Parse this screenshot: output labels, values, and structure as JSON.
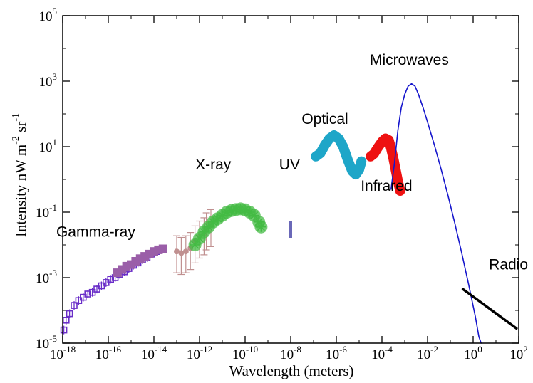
{
  "chart_data": {
    "type": "scatter",
    "title": "",
    "xlabel": "Wavelength (meters)",
    "ylabel_parts": [
      "Intensity nW m",
      "-2",
      " sr",
      "-1"
    ],
    "x_log": true,
    "y_log": true,
    "xlim_exp": [
      -18,
      2
    ],
    "ylim_exp": [
      -5,
      5
    ],
    "x_ticks": [
      {
        "exp": -18,
        "base": "10",
        "sup": "-18"
      },
      {
        "exp": -16,
        "base": "10",
        "sup": "-16"
      },
      {
        "exp": -14,
        "base": "10",
        "sup": "-14"
      },
      {
        "exp": -12,
        "base": "10",
        "sup": "-12"
      },
      {
        "exp": -10,
        "base": "10",
        "sup": "-10"
      },
      {
        "exp": -8,
        "base": "10",
        "sup": "-8"
      },
      {
        "exp": -6,
        "base": "10",
        "sup": "-6"
      },
      {
        "exp": -4,
        "base": "10",
        "sup": "-4"
      },
      {
        "exp": -2,
        "base": "10",
        "sup": "-2"
      },
      {
        "exp": 0,
        "base": "10",
        "sup": "0"
      },
      {
        "exp": 2,
        "base": "10",
        "sup": "2"
      }
    ],
    "y_ticks": [
      {
        "exp": -5,
        "base": "10",
        "sup": "-5"
      },
      {
        "exp": -3,
        "base": "10",
        "sup": "-3"
      },
      {
        "exp": -1,
        "base": "10",
        "sup": "-1"
      },
      {
        "exp": 1,
        "base": "10",
        "sup": "1"
      },
      {
        "exp": 3,
        "base": "10",
        "sup": "3"
      },
      {
        "exp": 5,
        "base": "10",
        "sup": "5"
      }
    ],
    "grid": false,
    "legend": "none",
    "series": [
      {
        "id": "gamma-purple",
        "color": "#6a2ec8",
        "marker": "open-square-errorbar",
        "points": [
          [
            -17.95,
            -4.6
          ],
          [
            -17.85,
            -4.3
          ],
          [
            -17.7,
            -4.1
          ],
          [
            -17.5,
            -3.85
          ],
          [
            -17.3,
            -3.7
          ],
          [
            -17.1,
            -3.6
          ],
          [
            -16.9,
            -3.5
          ],
          [
            -16.7,
            -3.45
          ],
          [
            -16.5,
            -3.35
          ],
          [
            -16.3,
            -3.25
          ],
          [
            -16.1,
            -3.15
          ],
          [
            -15.9,
            -3.05
          ],
          [
            -15.7,
            -3.0
          ],
          [
            -15.5,
            -2.9
          ],
          [
            -15.3,
            -2.82
          ],
          [
            -15.1,
            -2.72
          ],
          [
            -14.9,
            -2.62
          ],
          [
            -14.7,
            -2.55
          ],
          [
            -14.5,
            -2.45
          ],
          [
            -14.3,
            -2.38
          ],
          [
            -14.1,
            -2.28
          ],
          [
            -13.9,
            -2.2
          ]
        ]
      },
      {
        "id": "gamma-mauve",
        "color": "#9a5ea8",
        "marker": "filled-square",
        "points": [
          [
            -15.6,
            -2.85
          ],
          [
            -15.4,
            -2.75
          ],
          [
            -15.2,
            -2.65
          ],
          [
            -15.0,
            -2.6
          ],
          [
            -14.8,
            -2.5
          ],
          [
            -14.6,
            -2.42
          ],
          [
            -14.4,
            -2.35
          ],
          [
            -14.2,
            -2.28
          ],
          [
            -14.0,
            -2.2
          ],
          [
            -13.8,
            -2.15
          ],
          [
            -13.6,
            -2.12
          ]
        ]
      },
      {
        "id": "gamma-xray-pink",
        "color": "#c09090",
        "marker": "filled-circle-errorbar",
        "points": [
          [
            -13.0,
            -2.2
          ],
          [
            -12.8,
            -2.25
          ],
          [
            -12.6,
            -2.2
          ],
          [
            -12.4,
            -2.1
          ],
          [
            -12.2,
            -1.9
          ],
          [
            -12.0,
            -1.75
          ],
          [
            -11.8,
            -1.65
          ],
          [
            -11.7,
            -1.5
          ],
          [
            -11.5,
            -1.4
          ]
        ]
      },
      {
        "id": "xray-green",
        "color": "#44bb44",
        "marker": "star",
        "points": [
          [
            -12.2,
            -2.0
          ],
          [
            -12.0,
            -1.8
          ],
          [
            -11.8,
            -1.6
          ],
          [
            -11.6,
            -1.45
          ],
          [
            -11.4,
            -1.3
          ],
          [
            -11.2,
            -1.2
          ],
          [
            -11.0,
            -1.1
          ],
          [
            -10.8,
            -1.0
          ],
          [
            -10.6,
            -0.95
          ],
          [
            -10.4,
            -0.92
          ],
          [
            -10.2,
            -0.9
          ],
          [
            -10.0,
            -0.93
          ],
          [
            -9.8,
            -1.0
          ],
          [
            -9.6,
            -1.1
          ],
          [
            -9.4,
            -1.3
          ],
          [
            -9.3,
            -1.45
          ]
        ]
      },
      {
        "id": "uv",
        "color": "#6a68b8",
        "marker": "bar",
        "points": [
          [
            -8.0,
            -1.28
          ],
          [
            -8.0,
            -1.8
          ]
        ]
      },
      {
        "id": "optical",
        "color": "#1ea6c8",
        "marker": "band",
        "points": [
          [
            -6.9,
            0.7
          ],
          [
            -6.7,
            0.8
          ],
          [
            -6.5,
            1.05
          ],
          [
            -6.3,
            1.25
          ],
          [
            -6.1,
            1.35
          ],
          [
            -5.9,
            1.25
          ],
          [
            -5.7,
            1.0
          ],
          [
            -5.5,
            0.6
          ],
          [
            -5.3,
            0.25
          ],
          [
            -5.15,
            0.15
          ],
          [
            -5.0,
            0.3
          ],
          [
            -4.9,
            0.55
          ]
        ]
      },
      {
        "id": "infrared",
        "color": "#ee1111",
        "marker": "band",
        "points": [
          [
            -4.5,
            0.7
          ],
          [
            -4.35,
            0.78
          ],
          [
            -4.2,
            0.95
          ],
          [
            -4.0,
            1.15
          ],
          [
            -3.85,
            1.25
          ],
          [
            -3.7,
            1.2
          ],
          [
            -3.6,
            0.95
          ],
          [
            -3.5,
            0.65
          ],
          [
            -3.4,
            0.3
          ],
          [
            -3.3,
            -0.05
          ],
          [
            -3.2,
            -0.35
          ]
        ]
      },
      {
        "id": "microwave",
        "color": "#1515cc",
        "marker": "line",
        "points": [
          [
            -3.6,
            -0.3
          ],
          [
            -3.45,
            0.5
          ],
          [
            -3.3,
            1.5
          ],
          [
            -3.15,
            2.2
          ],
          [
            -3.0,
            2.6
          ],
          [
            -2.85,
            2.85
          ],
          [
            -2.7,
            2.92
          ],
          [
            -2.55,
            2.85
          ],
          [
            -2.4,
            2.6
          ],
          [
            -2.2,
            2.2
          ],
          [
            -2.0,
            1.75
          ],
          [
            -1.7,
            1.05
          ],
          [
            -1.4,
            0.3
          ],
          [
            -1.1,
            -0.5
          ],
          [
            -0.8,
            -1.35
          ],
          [
            -0.5,
            -2.25
          ],
          [
            -0.2,
            -3.2
          ],
          [
            0.1,
            -4.2
          ],
          [
            0.25,
            -4.8
          ],
          [
            0.35,
            -5.0
          ]
        ]
      },
      {
        "id": "radio",
        "color": "#000000",
        "marker": "line",
        "points": [
          [
            -0.45,
            -3.35
          ],
          [
            1.9,
            -4.55
          ]
        ]
      }
    ],
    "annotations": [
      {
        "id": "gamma",
        "text": "Gamma-ray",
        "x": -16.55,
        "y": -1.75
      },
      {
        "id": "xray",
        "text": "X-ray",
        "x": -11.4,
        "y": 0.3
      },
      {
        "id": "uv",
        "text": "UV",
        "x": -8.05,
        "y": 0.3
      },
      {
        "id": "optical",
        "text": "Optical",
        "x": -6.5,
        "y": 1.7
      },
      {
        "id": "infrared",
        "text": "Infrared",
        "x": -3.8,
        "y": -0.35
      },
      {
        "id": "microwaves",
        "text": "Microwaves",
        "x": -2.8,
        "y": 3.5
      },
      {
        "id": "radio",
        "text": "Radio",
        "x": 1.55,
        "y": -2.75
      }
    ]
  }
}
